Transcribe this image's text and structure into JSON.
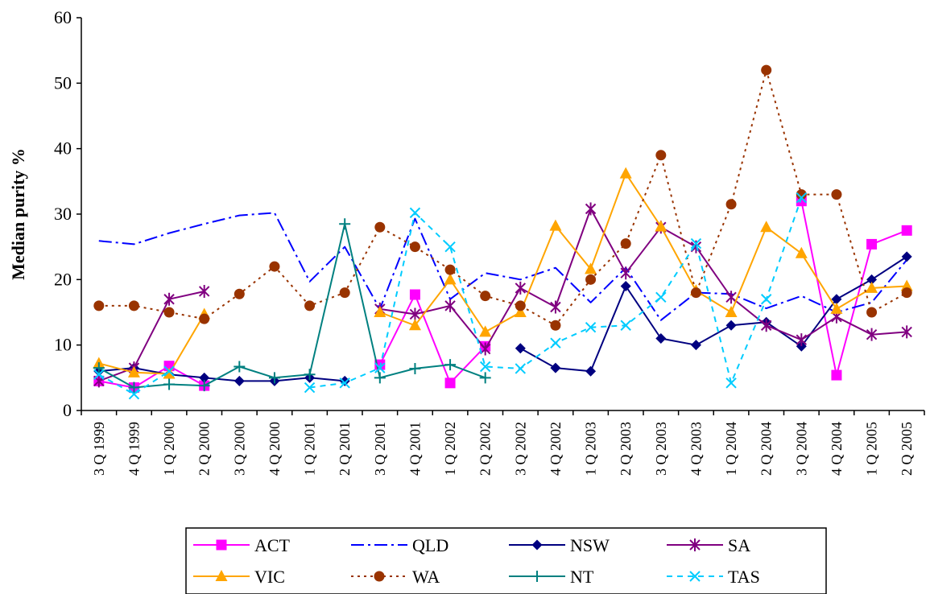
{
  "chart_data": {
    "type": "line",
    "title": "",
    "xlabel": "",
    "ylabel": "Median purity %",
    "ylim": [
      0,
      60
    ],
    "yticks": [
      0,
      10,
      20,
      30,
      40,
      50,
      60
    ],
    "grid": false,
    "legend_position": "bottom",
    "categories": [
      "3 Q 1999",
      "4 Q 1999",
      "1 Q 2000",
      "2 Q 2000",
      "3 Q 2000",
      "4 Q 2000",
      "1 Q 2001",
      "2 Q 2001",
      "3 Q 2001",
      "4 Q 2001",
      "1 Q 2002",
      "2 Q 2002",
      "3 Q 2002",
      "4 Q 2002",
      "1 Q 2003",
      "2 Q 2003",
      "3 Q 2003",
      "4 Q 2003",
      "1 Q 2004",
      "2 Q 2004",
      "3 Q 2004",
      "4 Q 2004",
      "1 Q 2005",
      "2 Q 2005"
    ],
    "series": [
      {
        "name": "ACT",
        "color": "#ff00ff",
        "dash": "solid",
        "marker": "square",
        "values": [
          4.5,
          3.5,
          6.8,
          3.8,
          null,
          null,
          null,
          null,
          7,
          17.7,
          4.2,
          9.8,
          null,
          null,
          null,
          null,
          null,
          null,
          null,
          null,
          32,
          5.4,
          25.4,
          27.5
        ]
      },
      {
        "name": "QLD",
        "color": "#0000ff",
        "dash": "dashdot",
        "marker": "none",
        "values": [
          25.9,
          25.4,
          27.1,
          28.5,
          29.8,
          30.2,
          19.7,
          25,
          15.5,
          29.3,
          17,
          21,
          20,
          21.8,
          16.5,
          21.8,
          13.8,
          18,
          17.8,
          15.6,
          17.5,
          15,
          16.5,
          23
        ]
      },
      {
        "name": "NSW",
        "color": "#000080",
        "dash": "solid",
        "marker": "diamond",
        "values": [
          6,
          6.5,
          5.5,
          5,
          4.5,
          4.5,
          5,
          4.5,
          null,
          null,
          null,
          null,
          9.5,
          6.5,
          6,
          19,
          11,
          10,
          13,
          13.5,
          9.8,
          17,
          20,
          23.5
        ]
      },
      {
        "name": "SA",
        "color": "#800080",
        "dash": "solid",
        "marker": "star",
        "values": [
          4.5,
          6.5,
          17,
          18.2,
          null,
          null,
          null,
          null,
          15.5,
          14.7,
          16,
          9.4,
          18.7,
          15.8,
          30.8,
          21,
          28,
          25,
          17.3,
          13,
          10.8,
          14.3,
          11.6,
          12
        ]
      },
      {
        "name": "VIC",
        "color": "#ffa500",
        "dash": "solid",
        "marker": "triangle",
        "values": [
          7.2,
          5.8,
          5.6,
          14.7,
          null,
          null,
          null,
          null,
          15,
          13,
          20,
          12,
          15,
          28.2,
          21.6,
          36.2,
          28.1,
          18.3,
          15,
          28,
          24,
          15.5,
          18.7,
          19
        ]
      },
      {
        "name": "WA",
        "color": "#993300",
        "dash": "dot",
        "marker": "circle",
        "values": [
          16,
          16,
          15,
          14,
          17.8,
          22,
          16,
          18,
          28,
          25,
          21.5,
          17.5,
          16,
          13,
          20,
          25.5,
          39,
          18,
          31.5,
          52,
          33,
          33,
          15,
          18
        ]
      },
      {
        "name": "NT",
        "color": "#008080",
        "dash": "solid",
        "marker": "plus",
        "values": [
          6.5,
          3.5,
          4,
          3.8,
          6.7,
          5,
          5.5,
          28.5,
          5,
          6.4,
          7,
          5,
          null,
          null,
          null,
          null,
          null,
          null,
          null,
          null,
          null,
          null,
          null,
          null
        ]
      },
      {
        "name": "TAS",
        "color": "#00ccff",
        "dash": "dash",
        "marker": "cross",
        "values": [
          5.5,
          2.5,
          6,
          null,
          null,
          null,
          3.5,
          4.2,
          6.5,
          30.2,
          25,
          6.7,
          6.4,
          10.3,
          12.7,
          13,
          17.3,
          25.5,
          4.2,
          17,
          32.5,
          null,
          null,
          null
        ]
      }
    ]
  }
}
